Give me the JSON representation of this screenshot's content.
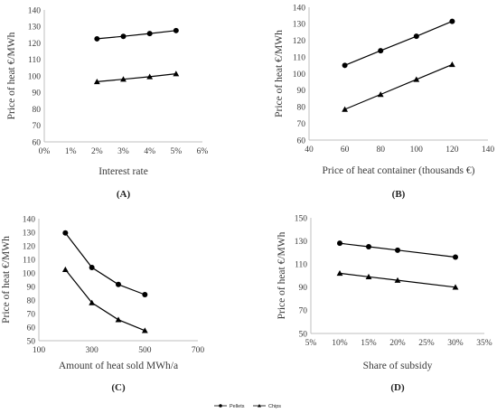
{
  "chart_data": [
    {
      "panel": "(A)",
      "type": "line",
      "xlabel": "Interest rate",
      "ylabel": "Price of heat €/MWh",
      "xlim": [
        0,
        6
      ],
      "ylim": [
        60,
        140
      ],
      "xticks": [
        0,
        1,
        2,
        3,
        4,
        5,
        6
      ],
      "xtick_labels": [
        "0%",
        "1%",
        "2%",
        "3%",
        "4%",
        "5%",
        "6%"
      ],
      "yticks": [
        60,
        70,
        80,
        90,
        100,
        110,
        120,
        130,
        140
      ],
      "series": [
        {
          "name": "Pellets",
          "marker": "circle",
          "x": [
            2,
            3,
            4,
            5
          ],
          "y": [
            122.5,
            124,
            125.7,
            127.5
          ]
        },
        {
          "name": "Chips",
          "marker": "triangle",
          "x": [
            2,
            3,
            4,
            5
          ],
          "y": [
            96.5,
            98,
            99.5,
            101.3
          ]
        }
      ]
    },
    {
      "panel": "(B)",
      "type": "line",
      "xlabel": "Price of heat container (thousands €)",
      "ylabel": "Price of heat €/MWh",
      "xlim": [
        40,
        140
      ],
      "ylim": [
        60,
        140
      ],
      "xticks": [
        40,
        60,
        80,
        100,
        120,
        140
      ],
      "yticks": [
        60,
        70,
        80,
        90,
        100,
        110,
        120,
        130,
        140
      ],
      "series": [
        {
          "name": "Pellets",
          "marker": "circle",
          "x": [
            60,
            80,
            100,
            120
          ],
          "y": [
            105,
            113.8,
            122.5,
            131.5
          ]
        },
        {
          "name": "Chips",
          "marker": "triangle",
          "x": [
            60,
            80,
            100,
            120
          ],
          "y": [
            78.5,
            87.5,
            96.5,
            105.5
          ]
        }
      ]
    },
    {
      "panel": "(C)",
      "type": "line",
      "xlabel": "Amount of heat sold MWh/a",
      "ylabel": "Price of heat €/MWh",
      "xlim": [
        100,
        700
      ],
      "ylim": [
        50,
        140
      ],
      "xticks": [
        100,
        300,
        500,
        700
      ],
      "yticks": [
        50,
        60,
        70,
        80,
        90,
        100,
        110,
        120,
        130,
        140
      ],
      "series": [
        {
          "name": "Pellets",
          "marker": "circle",
          "x": [
            200,
            300,
            400,
            500
          ],
          "y": [
            129.5,
            104,
            91.5,
            84
          ]
        },
        {
          "name": "Chips",
          "marker": "triangle",
          "x": [
            200,
            300,
            400,
            500
          ],
          "y": [
            102.5,
            78,
            65.5,
            57.5
          ]
        }
      ]
    },
    {
      "panel": "(D)",
      "type": "line",
      "xlabel": "Share of subsidy",
      "ylabel": "Price of heat €/MWh",
      "xlim": [
        5,
        35
      ],
      "ylim": [
        50,
        150
      ],
      "xticks": [
        5,
        10,
        15,
        20,
        25,
        30,
        35
      ],
      "xtick_labels": [
        "5%",
        "10%",
        "15%",
        "20%",
        "25%",
        "30%",
        "35%"
      ],
      "yticks": [
        50,
        70,
        90,
        110,
        130,
        150
      ],
      "series": [
        {
          "name": "Pellets",
          "marker": "circle",
          "x": [
            10,
            15,
            20,
            30
          ],
          "y": [
            128,
            125,
            122,
            116
          ]
        },
        {
          "name": "Chips",
          "marker": "triangle",
          "x": [
            10,
            15,
            20,
            30
          ],
          "y": [
            102,
            99,
            96,
            90
          ]
        }
      ]
    }
  ],
  "legend": {
    "placement": "bottom-center",
    "items": [
      {
        "label": "Pellets",
        "marker": "circle"
      },
      {
        "label": "Chips",
        "marker": "triangle"
      }
    ]
  },
  "colors": {
    "line": "#000000",
    "axis": "#bfbfbf",
    "text": "#3a3a3a"
  }
}
